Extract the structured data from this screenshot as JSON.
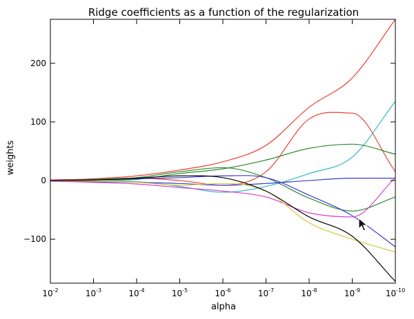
{
  "chart_data": {
    "type": "line",
    "title": "Ridge coefficients as a function of the regularization",
    "xlabel": "alpha",
    "ylabel": "weights",
    "xscale": "log",
    "xaxis_direction": "reversed",
    "xlim": [
      0.01,
      1e-10
    ],
    "ylim": [
      -175,
      275
    ],
    "grid": false,
    "legend": "none",
    "x_ticks": [
      {
        "value": 0.01,
        "base": "10",
        "exp": "-2"
      },
      {
        "value": 0.001,
        "base": "10",
        "exp": "-3"
      },
      {
        "value": 0.0001,
        "base": "10",
        "exp": "-4"
      },
      {
        "value": 1e-05,
        "base": "10",
        "exp": "-5"
      },
      {
        "value": 1e-06,
        "base": "10",
        "exp": "-6"
      },
      {
        "value": 1e-07,
        "base": "10",
        "exp": "-7"
      },
      {
        "value": 1e-08,
        "base": "10",
        "exp": "-8"
      },
      {
        "value": 1e-09,
        "base": "10",
        "exp": "-9"
      },
      {
        "value": 1e-10,
        "base": "10",
        "exp": "-10"
      }
    ],
    "y_ticks": [
      {
        "value": 200,
        "label": "200"
      },
      {
        "value": 100,
        "label": "100"
      },
      {
        "value": 0,
        "label": "0"
      },
      {
        "value": -100,
        "label": "−100"
      }
    ],
    "x": [
      0.01,
      0.001,
      0.0001,
      1e-05,
      1e-06,
      1e-07,
      1e-08,
      1e-09,
      1e-10
    ],
    "series": [
      {
        "color": "#e8402f",
        "values": [
          1,
          3,
          8,
          18,
          32,
          60,
          125,
          175,
          275
        ]
      },
      {
        "color": "#e8402f",
        "values": [
          1,
          2,
          4,
          0,
          -8,
          15,
          105,
          115,
          15
        ]
      },
      {
        "color": "#34b7c8",
        "values": [
          -1,
          -1,
          -2,
          -10,
          -20,
          -10,
          12,
          40,
          135
        ]
      },
      {
        "color": "#2e8b30",
        "values": [
          0,
          1,
          2,
          12,
          20,
          35,
          55,
          62,
          45
        ]
      },
      {
        "color": "#2e8b30",
        "values": [
          0,
          2,
          5,
          15,
          22,
          5,
          -30,
          -52,
          -28
        ]
      },
      {
        "color": "#3b3bd1",
        "values": [
          -1,
          -2,
          -3,
          -5,
          -8,
          -5,
          0,
          4,
          4
        ]
      },
      {
        "color": "#3b3bd1",
        "values": [
          0,
          1,
          3,
          5,
          8,
          5,
          -25,
          -60,
          -113
        ]
      },
      {
        "color": "#d63fd0",
        "values": [
          -1,
          -3,
          -6,
          -12,
          -18,
          -28,
          -55,
          -62,
          5
        ]
      },
      {
        "color": "#d4c937",
        "values": [
          0,
          -1,
          -3,
          -8,
          -5,
          -18,
          -72,
          -100,
          -122
        ]
      },
      {
        "color": "#000000",
        "values": [
          0,
          1,
          4,
          8,
          5,
          -18,
          -62,
          -95,
          -172
        ]
      }
    ]
  }
}
